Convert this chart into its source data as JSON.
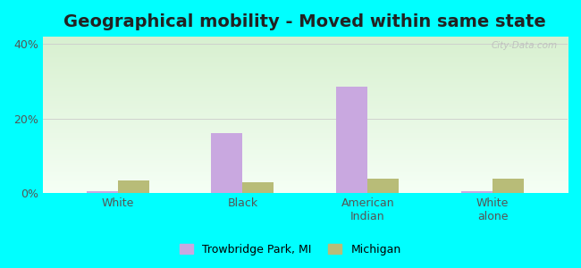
{
  "title": "Geographical mobility - Moved within same state",
  "categories": [
    "White",
    "Black",
    "American\nIndian",
    "White\nalone"
  ],
  "series": {
    "Trowbridge Park, MI": [
      0.4,
      16.0,
      28.5,
      0.4
    ],
    "Michigan": [
      3.5,
      3.0,
      3.8,
      3.8
    ]
  },
  "colors": {
    "Trowbridge Park, MI": "#c9a8e0",
    "Michigan": "#b8bc78"
  },
  "ylim": [
    0,
    42
  ],
  "yticks": [
    0,
    20,
    40
  ],
  "ytick_labels": [
    "0%",
    "20%",
    "40%"
  ],
  "bar_width": 0.25,
  "background_color": "#00ffff",
  "gradient_top": "#f5fff5",
  "gradient_bottom": "#d8f0d0",
  "title_fontsize": 14,
  "axis_label_fontsize": 9,
  "legend_fontsize": 9,
  "tick_color": "#555555",
  "watermark": "City-Data.com"
}
